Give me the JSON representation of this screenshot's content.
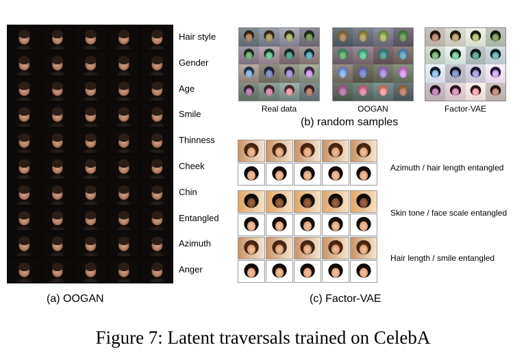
{
  "panel_a": {
    "caption": "(a) OOGAN",
    "rows": [
      "Hair style",
      "Gender",
      "Age",
      "Smile",
      "Thinness",
      "Cheek",
      "Chin",
      "Entangled",
      "Azimuth",
      "Anger"
    ]
  },
  "panel_b": {
    "caption": "(b) random samples",
    "grids": [
      "Real data",
      "OOGAN",
      "Factor-VAE"
    ]
  },
  "panel_c": {
    "caption": "(c) Factor-VAE",
    "pairs": [
      "Azimuth / hair length entangled",
      "Skin tone / face scale entangled",
      "Hair length / smile entangled"
    ]
  },
  "figure_caption": "Figure 7: Latent traversals trained on CelebA"
}
